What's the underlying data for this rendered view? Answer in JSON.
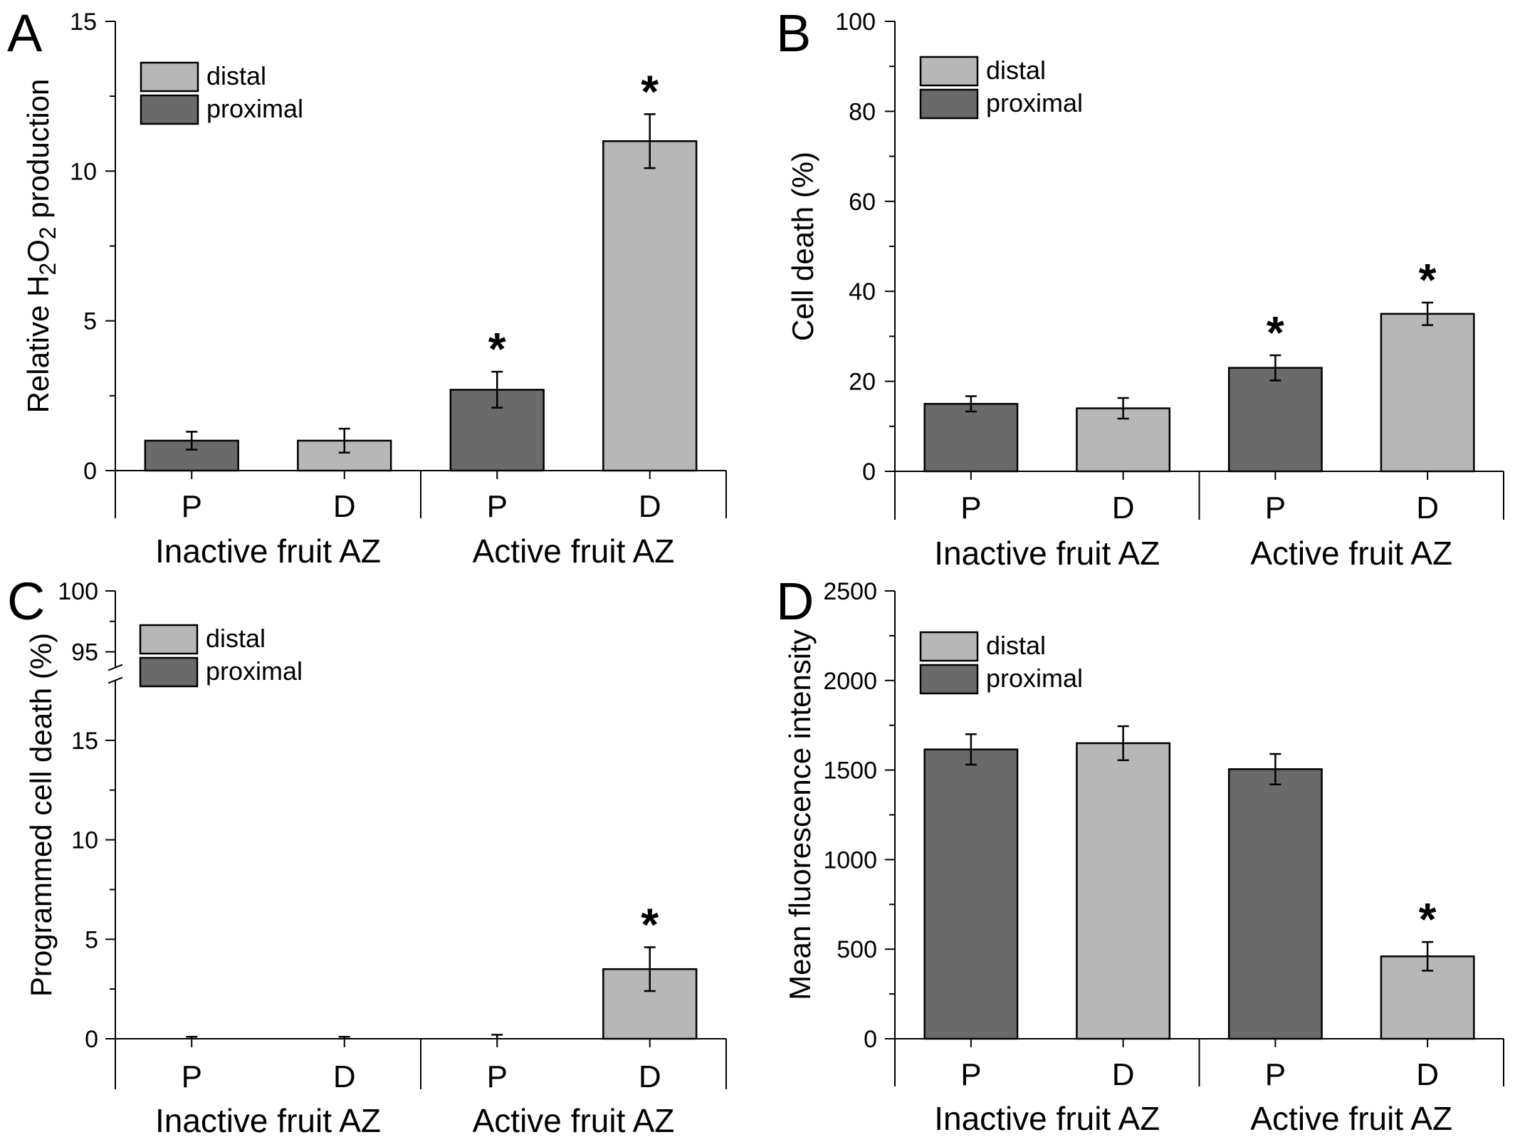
{
  "colors": {
    "proximal": "#6a6a6a",
    "distal": "#b7b7b7",
    "axis": "#000000"
  },
  "legend": {
    "distal": "distal",
    "proximal": "proximal"
  },
  "groups": [
    "Inactive fruit AZ",
    "Active fruit AZ"
  ],
  "categories": [
    "P",
    "D",
    "P",
    "D"
  ],
  "panels": [
    {
      "letter": "A",
      "ylabel": "Relative H2O2 production",
      "ticks": [
        "0",
        "5",
        "10",
        "15"
      ]
    },
    {
      "letter": "B",
      "ylabel": "Cell death (%)",
      "ticks": [
        "0",
        "20",
        "40",
        "60",
        "80",
        "100"
      ]
    },
    {
      "letter": "C",
      "ylabel": "Programmed cell death (%)",
      "ticks": [
        "0",
        "5",
        "10",
        "15",
        "95",
        "100"
      ]
    },
    {
      "letter": "D",
      "ylabel": "Mean fluorescence intensity",
      "ticks": [
        "0",
        "500",
        "1000",
        "1500",
        "2000",
        "2500"
      ]
    }
  ],
  "chart_data": [
    {
      "type": "bar",
      "panel": "A",
      "categories": [
        "P",
        "D",
        "P",
        "D"
      ],
      "groups": [
        "Inactive fruit AZ",
        "Active fruit AZ"
      ],
      "series_per_bar": [
        "proximal",
        "distal",
        "proximal",
        "distal"
      ],
      "values": [
        1.0,
        1.0,
        2.7,
        11.0
      ],
      "errors": [
        0.3,
        0.4,
        0.6,
        0.9
      ],
      "significant": [
        false,
        false,
        true,
        true
      ],
      "ylabel": "Relative H2O2 production",
      "ylim": [
        0,
        15
      ],
      "yticks": [
        0,
        5,
        10,
        15
      ]
    },
    {
      "type": "bar",
      "panel": "B",
      "categories": [
        "P",
        "D",
        "P",
        "D"
      ],
      "groups": [
        "Inactive fruit AZ",
        "Active fruit AZ"
      ],
      "series_per_bar": [
        "proximal",
        "distal",
        "proximal",
        "distal"
      ],
      "values": [
        15,
        14,
        23,
        35
      ],
      "errors": [
        1.7,
        2.3,
        2.8,
        2.5
      ],
      "significant": [
        false,
        false,
        true,
        true
      ],
      "ylabel": "Cell death (%)",
      "ylim": [
        0,
        100
      ],
      "yticks": [
        0,
        20,
        40,
        60,
        80,
        100
      ]
    },
    {
      "type": "bar",
      "panel": "C",
      "categories": [
        "P",
        "D",
        "P",
        "D"
      ],
      "groups": [
        "Inactive fruit AZ",
        "Active fruit AZ"
      ],
      "series_per_bar": [
        "proximal",
        "distal",
        "proximal",
        "distal"
      ],
      "values": [
        0,
        0,
        0,
        3.5
      ],
      "errors": [
        0.1,
        0.1,
        0.2,
        1.1
      ],
      "significant": [
        false,
        false,
        false,
        true
      ],
      "ylabel": "Programmed cell death (%)",
      "ylim": [
        0,
        100
      ],
      "axis_break": [
        19,
        95
      ],
      "yticks": [
        0,
        5,
        10,
        15,
        95,
        100
      ]
    },
    {
      "type": "bar",
      "panel": "D",
      "categories": [
        "P",
        "D",
        "P",
        "D"
      ],
      "groups": [
        "Inactive fruit AZ",
        "Active fruit AZ"
      ],
      "series_per_bar": [
        "proximal",
        "distal",
        "proximal",
        "distal"
      ],
      "values": [
        1615,
        1650,
        1505,
        460
      ],
      "errors": [
        85,
        95,
        85,
        80
      ],
      "significant": [
        false,
        false,
        false,
        true
      ],
      "ylabel": "Mean fluorescence intensity",
      "ylim": [
        0,
        2500
      ],
      "yticks": [
        0,
        500,
        1000,
        1500,
        2000,
        2500
      ]
    }
  ]
}
